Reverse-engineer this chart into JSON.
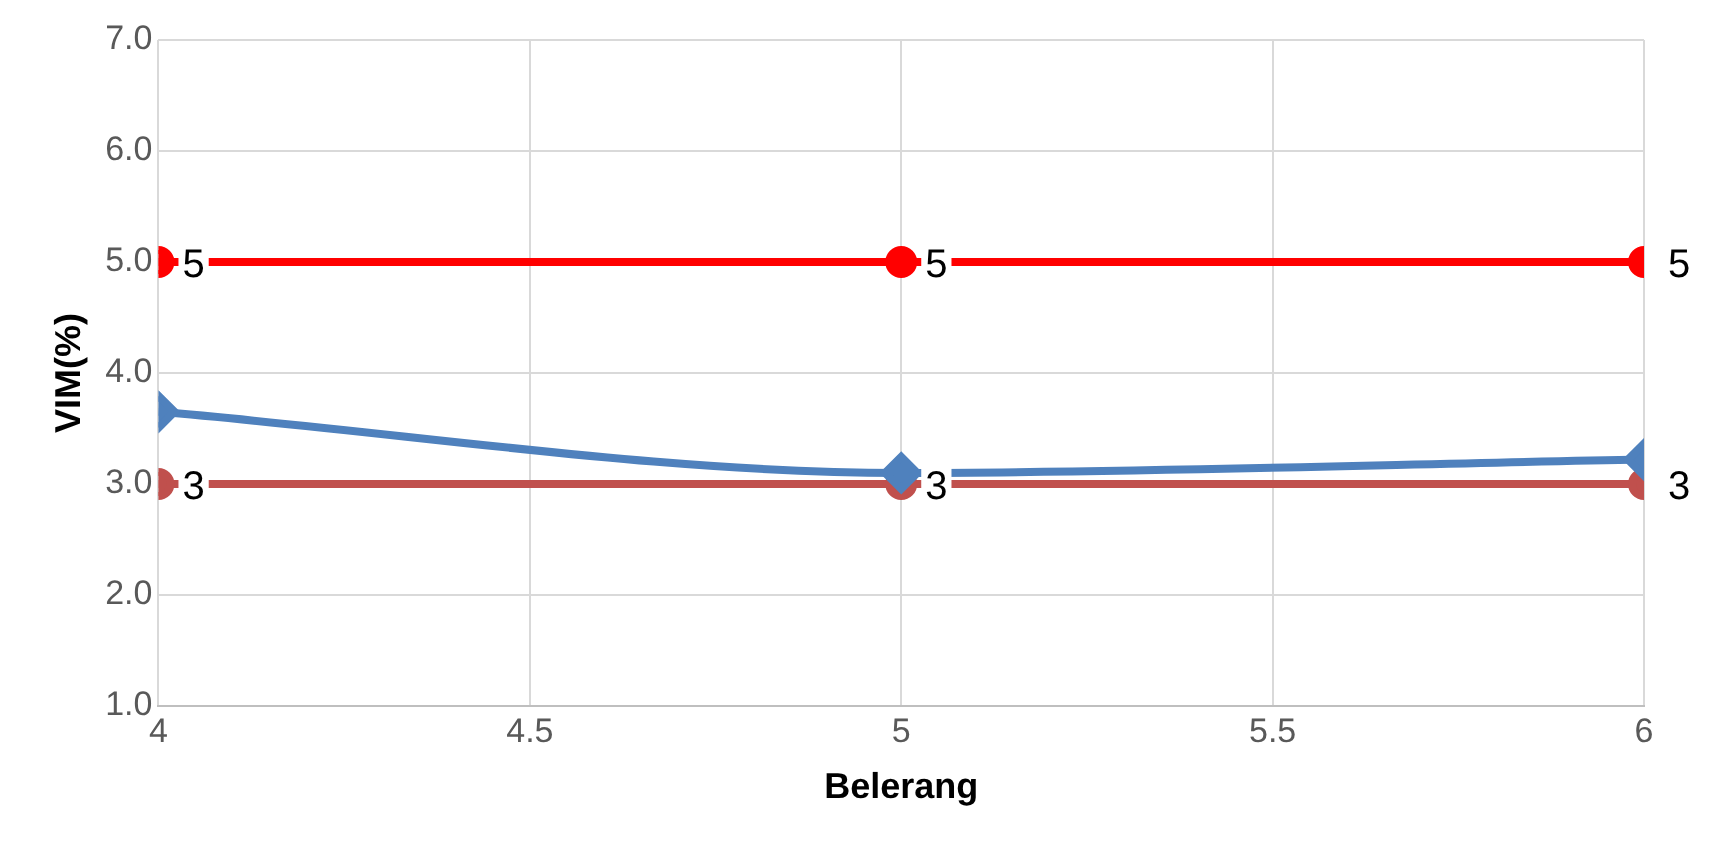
{
  "chart_data": {
    "type": "line",
    "xlabel": "Belerang",
    "ylabel": "VIM(%)",
    "x": [
      4,
      5,
      6
    ],
    "xlim": [
      4,
      6
    ],
    "xticks": [
      4,
      4.5,
      5,
      5.5,
      6
    ],
    "ylim": [
      1,
      7
    ],
    "yticks": [
      {
        "value": 1,
        "label": "1.0"
      },
      {
        "value": 2,
        "label": "2.0"
      },
      {
        "value": 3,
        "label": "3.0"
      },
      {
        "value": 4,
        "label": "4.0"
      },
      {
        "value": 5,
        "label": "5.0"
      },
      {
        "value": 6,
        "label": "6.0"
      },
      {
        "value": 7,
        "label": "7.0"
      }
    ],
    "grid": true,
    "legend": false,
    "line_style": "solid",
    "series": [
      {
        "color": "#ff0000",
        "values": [
          5,
          5,
          5
        ],
        "marker": "circle",
        "value_labels": [
          "5",
          "5",
          "5"
        ]
      },
      {
        "color": "#4f81bd",
        "values": [
          3.65,
          3.1,
          3.22
        ],
        "marker": "diamond"
      },
      {
        "color": "#c0504d",
        "values": [
          3,
          3,
          3
        ],
        "marker": "circle",
        "value_labels": [
          "3",
          "3",
          "3"
        ]
      }
    ]
  }
}
